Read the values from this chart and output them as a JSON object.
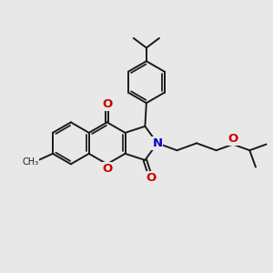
{
  "bg_color": "#e8e8e8",
  "bond_color": "#1a1a1a",
  "bond_width": 1.4,
  "atom_colors": {
    "O": "#cc0000",
    "N": "#0000cc",
    "C": "#1a1a1a"
  },
  "font_size": 8.5,
  "fig_size": [
    3.0,
    3.0
  ],
  "dpi": 100
}
